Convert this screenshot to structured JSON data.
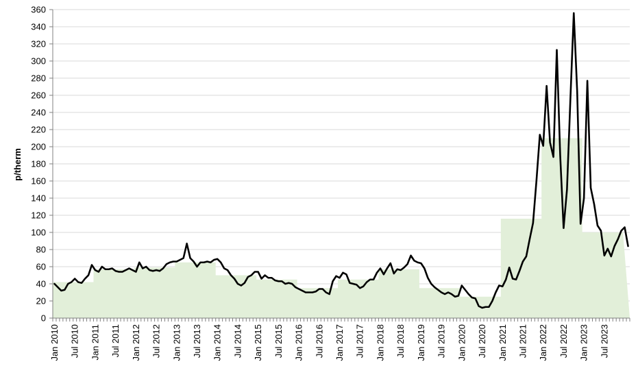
{
  "chart_data": {
    "type": "line",
    "title": "",
    "xlabel": "",
    "ylabel": "p/therm",
    "ylim": [
      0,
      360
    ],
    "y_ticks": [
      0,
      20,
      40,
      60,
      80,
      100,
      120,
      140,
      160,
      180,
      200,
      220,
      240,
      260,
      280,
      300,
      320,
      340,
      360
    ],
    "x_tick_labels": [
      "Jan 2010",
      "Jul 2010",
      "Jan 2011",
      "Jul 2011",
      "Jan 2012",
      "Jul 2012",
      "Jan 2013",
      "Jul 2013",
      "Jan 2014",
      "Jul 2014",
      "Jan 2015",
      "Jul 2015",
      "Jan 2016",
      "Jul 2016",
      "Jan 2017",
      "Jul 2017",
      "Jan 2018",
      "Jul 2018",
      "Jan 2019",
      "Jul 2019",
      "Jan 2020",
      "Jul 2020",
      "Jan 2021",
      "Jul 2021",
      "Jan 2022",
      "Jul 2022",
      "Jan 2023",
      "Jul 2023"
    ],
    "grid": true,
    "start": "Jan 2010",
    "colors": {
      "line": "#000000",
      "area": "#e2efd9",
      "grid": "#d9d9d9",
      "axis": "#808080"
    },
    "series": [
      {
        "type": "line",
        "values": [
          40,
          36,
          32,
          33,
          40,
          42,
          46,
          42,
          41,
          46,
          50,
          62,
          56,
          54,
          60,
          57,
          57,
          58,
          55,
          54,
          54,
          56,
          58,
          56,
          54,
          65,
          58,
          60,
          56,
          55,
          56,
          55,
          58,
          63,
          65,
          66,
          66,
          68,
          70,
          87,
          70,
          66,
          60,
          65,
          65,
          66,
          65,
          68,
          69,
          65,
          58,
          56,
          50,
          46,
          40,
          38,
          41,
          48,
          50,
          54,
          54,
          46,
          50,
          47,
          47,
          44,
          43,
          43,
          40,
          41,
          40,
          36,
          34,
          32,
          30,
          30,
          30,
          31,
          34,
          34,
          30,
          28,
          43,
          49,
          47,
          53,
          51,
          41,
          40,
          39,
          35,
          37,
          42,
          45,
          45,
          53,
          58,
          51,
          58,
          64,
          52,
          57,
          56,
          59,
          63,
          73,
          67,
          65,
          64,
          58,
          47,
          40,
          36,
          33,
          30,
          28,
          30,
          28,
          25,
          26,
          38,
          33,
          28,
          24,
          23,
          14,
          12,
          13,
          13,
          20,
          30,
          38,
          37,
          45,
          59,
          46,
          45,
          55,
          66,
          72,
          92,
          111,
          160,
          214,
          201,
          271,
          205,
          188,
          313,
          190,
          105,
          150,
          255,
          356,
          265,
          110,
          140,
          277,
          152,
          133,
          108,
          102,
          73,
          81,
          72,
          84,
          92,
          102,
          106,
          84
        ]
      },
      {
        "type": "area",
        "values": [
          42,
          42,
          42,
          42,
          42,
          42,
          42,
          42,
          42,
          42,
          42,
          42,
          57,
          57,
          57,
          57,
          57,
          57,
          57,
          57,
          57,
          57,
          57,
          57,
          59,
          59,
          59,
          59,
          59,
          59,
          59,
          59,
          59,
          59,
          59,
          59,
          65,
          65,
          65,
          65,
          65,
          65,
          65,
          65,
          65,
          65,
          65,
          65,
          50,
          50,
          50,
          50,
          50,
          50,
          50,
          50,
          50,
          50,
          50,
          50,
          45,
          45,
          45,
          45,
          45,
          45,
          45,
          45,
          45,
          45,
          45,
          45,
          35,
          35,
          35,
          35,
          35,
          35,
          35,
          35,
          35,
          35,
          35,
          35,
          45,
          45,
          45,
          45,
          45,
          45,
          45,
          45,
          45,
          45,
          45,
          45,
          57,
          57,
          57,
          57,
          57,
          57,
          57,
          57,
          57,
          57,
          57,
          57,
          35,
          35,
          35,
          35,
          35,
          35,
          35,
          35,
          35,
          35,
          35,
          35,
          25,
          25,
          25,
          25,
          25,
          25,
          25,
          25,
          25,
          25,
          25,
          25,
          116,
          116,
          116,
          116,
          116,
          116,
          116,
          116,
          116,
          116,
          116,
          116,
          210,
          210,
          210,
          210,
          210,
          210,
          210,
          210,
          210,
          210,
          210,
          210,
          100,
          100,
          100,
          100,
          100,
          100,
          100,
          100,
          100,
          100,
          100,
          100
        ]
      }
    ]
  }
}
